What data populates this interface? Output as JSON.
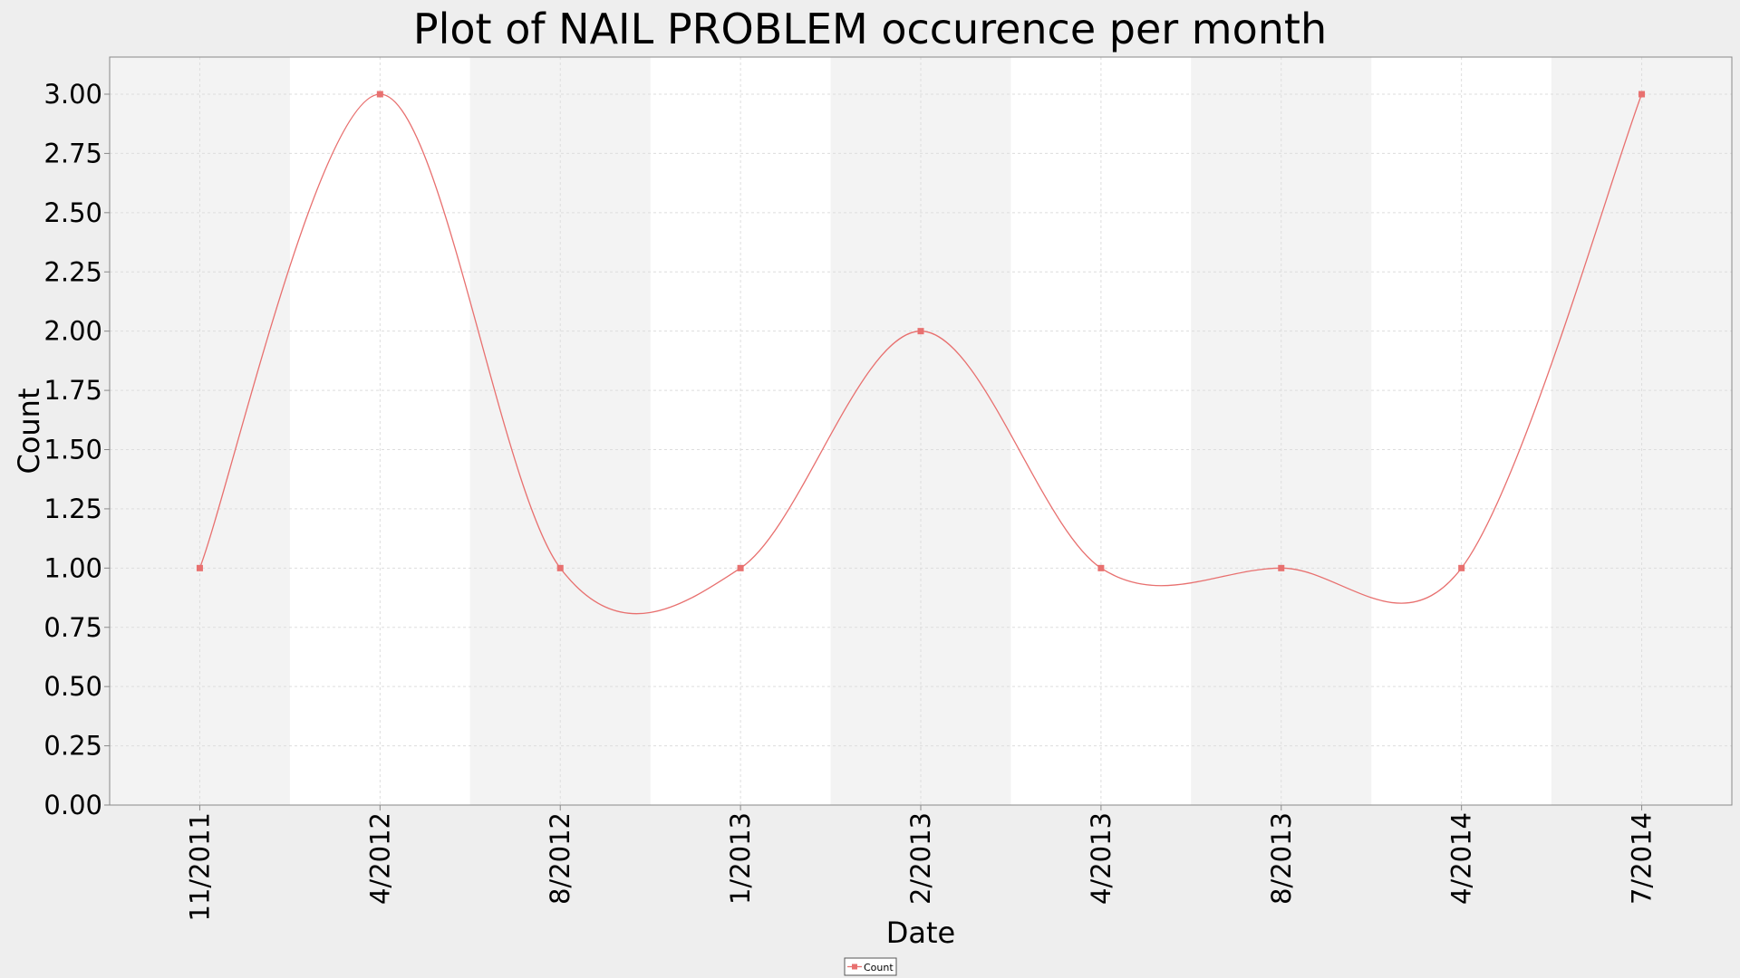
{
  "chart_data": {
    "type": "line",
    "title": "Plot of NAIL PROBLEM occurence per month",
    "xlabel": "Date",
    "ylabel": "Count",
    "ylim": [
      0,
      3.0
    ],
    "yticks": [
      "0.00",
      "0.25",
      "0.50",
      "0.75",
      "1.00",
      "1.25",
      "1.50",
      "1.75",
      "2.00",
      "2.25",
      "2.50",
      "2.75",
      "3.00"
    ],
    "categories": [
      "11/2011",
      "4/2012",
      "8/2012",
      "1/2013",
      "2/2013",
      "4/2013",
      "8/2013",
      "4/2014",
      "7/2014"
    ],
    "series": [
      {
        "name": "Count",
        "color": "#e8706f",
        "values": [
          1,
          3,
          1,
          1,
          2,
          1,
          1,
          1,
          3
        ]
      }
    ],
    "grid": true,
    "alternating_bands": true,
    "legend": "bottom-center"
  }
}
